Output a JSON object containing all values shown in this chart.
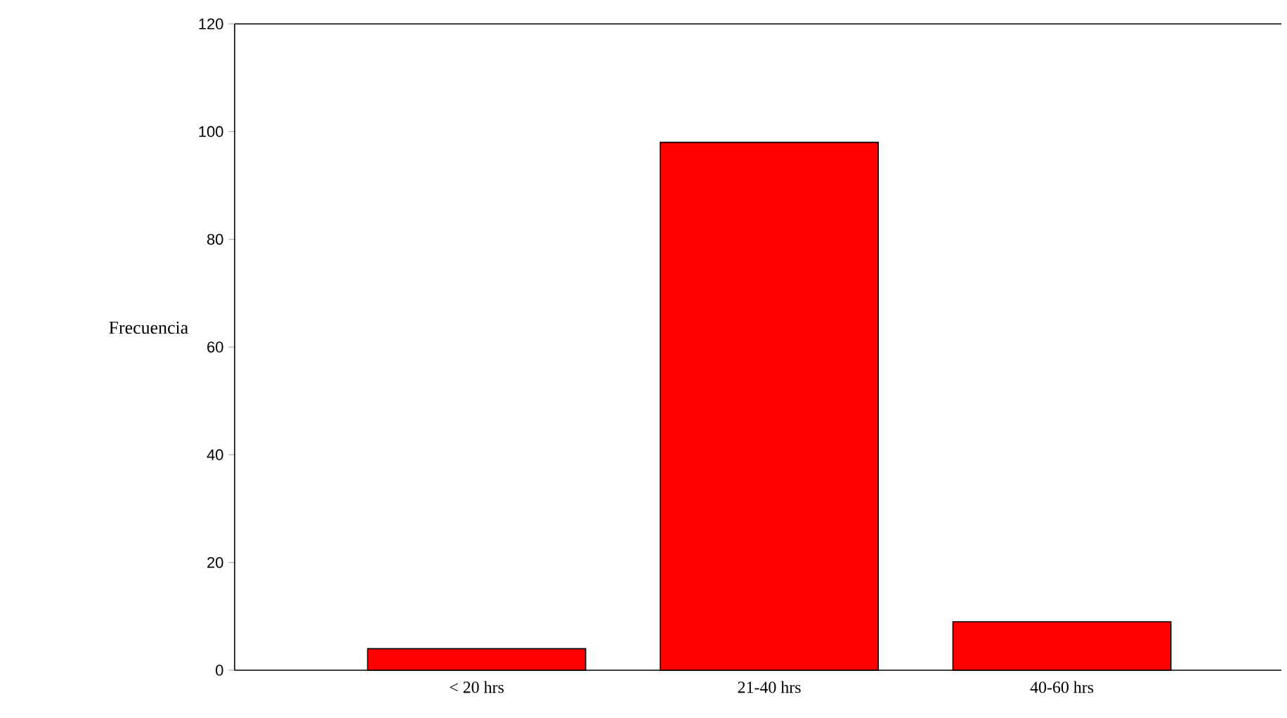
{
  "chart_data": {
    "type": "bar",
    "ylabel": "Frecuencia",
    "categories": [
      "< 20 hrs",
      "21-40 hrs",
      "40-60 hrs"
    ],
    "values": [
      4,
      98,
      9
    ],
    "color": "#ff0000",
    "ylim": [
      0,
      120
    ],
    "yticks": [
      0,
      20,
      40,
      60,
      80,
      100,
      120
    ]
  }
}
